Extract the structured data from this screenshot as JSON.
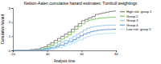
{
  "chart_data": {
    "type": "step",
    "title": "Nelson-Aalen cumulative hazard estimates: Turnbull weightings",
    "x_label": "Analysis time",
    "y_label": "Cumulative hazard",
    "xlim": [
      20,
      80
    ],
    "ylim": [
      0,
      3
    ],
    "xticks": [
      20,
      40,
      60,
      80
    ],
    "yticks": [
      0,
      1,
      2,
      3
    ],
    "grid": false,
    "legend": "upper right",
    "series": [
      {
        "name": "High risk: group 1",
        "color": "#666666",
        "x": [
          20,
          28,
          30,
          33,
          36,
          38,
          40,
          42,
          44,
          46,
          48,
          50,
          52,
          54,
          56,
          58,
          60,
          62,
          64,
          66,
          68,
          70,
          72,
          74,
          76,
          78,
          80
        ],
        "values": [
          0,
          0.02,
          0.06,
          0.1,
          0.18,
          0.25,
          0.4,
          0.55,
          0.7,
          0.85,
          1.0,
          1.15,
          1.3,
          1.5,
          1.7,
          1.9,
          2.1,
          2.2,
          2.3,
          2.4,
          2.55,
          2.6,
          2.65,
          2.7,
          2.75,
          2.78,
          2.8
        ]
      },
      {
        "name": "Group 2",
        "color": "#66bb44",
        "x": [
          20,
          30,
          33,
          36,
          38,
          40,
          42,
          44,
          46,
          48,
          50,
          52,
          54,
          56,
          58,
          60,
          62,
          64,
          66,
          68,
          70,
          72,
          74,
          76,
          78,
          80
        ],
        "values": [
          0,
          0.01,
          0.04,
          0.08,
          0.14,
          0.25,
          0.38,
          0.52,
          0.65,
          0.8,
          0.95,
          1.1,
          1.3,
          1.5,
          1.7,
          1.9,
          2.05,
          2.15,
          2.2,
          2.25,
          2.28,
          2.3,
          2.32,
          2.34,
          2.35,
          2.35
        ]
      },
      {
        "name": "Group 3",
        "color": "#88bbee",
        "x": [
          20,
          30,
          34,
          37,
          39,
          41,
          43,
          46,
          48,
          50,
          53,
          55,
          57,
          59,
          61,
          63,
          65,
          67,
          69,
          71,
          73,
          75,
          77,
          80
        ],
        "values": [
          0,
          0.01,
          0.03,
          0.07,
          0.12,
          0.2,
          0.32,
          0.45,
          0.58,
          0.7,
          0.85,
          1.0,
          1.15,
          1.3,
          1.45,
          1.58,
          1.65,
          1.7,
          1.72,
          1.75,
          1.77,
          1.78,
          1.79,
          1.8
        ]
      },
      {
        "name": "Group 4",
        "color": "#4488cc",
        "x": [
          20,
          31,
          35,
          38,
          40,
          42,
          45,
          47,
          50,
          52,
          55,
          57,
          59,
          61,
          63,
          65,
          67,
          69,
          71,
          73,
          75,
          78,
          80
        ],
        "values": [
          0,
          0.01,
          0.02,
          0.05,
          0.1,
          0.17,
          0.27,
          0.38,
          0.5,
          0.62,
          0.76,
          0.9,
          1.03,
          1.15,
          1.25,
          1.32,
          1.38,
          1.42,
          1.45,
          1.47,
          1.48,
          1.5,
          1.5
        ]
      },
      {
        "name": "Low risk: group 5",
        "color": "#aaddff",
        "x": [
          20,
          32,
          36,
          39,
          41,
          44,
          46,
          49,
          51,
          54,
          56,
          58,
          61,
          63,
          65,
          67,
          69,
          72,
          74,
          77,
          80
        ],
        "values": [
          0,
          0.005,
          0.01,
          0.03,
          0.06,
          0.12,
          0.2,
          0.3,
          0.4,
          0.52,
          0.63,
          0.75,
          0.88,
          0.98,
          1.06,
          1.12,
          1.16,
          1.18,
          1.2,
          1.21,
          1.22
        ]
      }
    ]
  }
}
